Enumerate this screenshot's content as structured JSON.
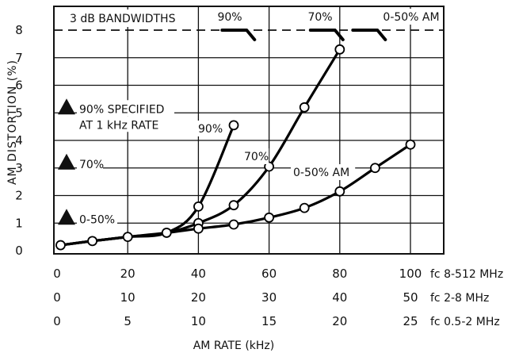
{
  "chart_data": {
    "type": "line",
    "xlabel": "AM RATE (kHz)",
    "ylabel": "AM DISTORTION (%)",
    "xlim": [
      0,
      100
    ],
    "ylim": [
      0,
      8
    ],
    "grid": true,
    "y_ticks": [
      "0",
      "1",
      "2",
      "3",
      "4",
      "5",
      "6",
      "7",
      "8"
    ],
    "x_scales": [
      {
        "ticks": [
          "0",
          "20",
          "40",
          "60",
          "80",
          "100"
        ],
        "label": "fc 8-512 MHz"
      },
      {
        "ticks": [
          "0",
          "10",
          "20",
          "30",
          "40",
          "50"
        ],
        "label": "fc 2-8 MHz"
      },
      {
        "ticks": [
          "0",
          "5",
          "10",
          "15",
          "20",
          "25"
        ],
        "label": "fc 0.5-2 MHz"
      }
    ],
    "bandwidth_line": {
      "y": 8,
      "label": "3 dB BANDWIDTHS",
      "markers": [
        {
          "label": "90%",
          "x": 55
        },
        {
          "label": "70%",
          "x": 80
        },
        {
          "label": "0-50% AM",
          "x": 92
        }
      ]
    },
    "series": [
      {
        "name": "90%",
        "x": [
          1,
          10,
          20,
          31,
          40,
          50
        ],
        "y": [
          0.2,
          0.35,
          0.5,
          0.65,
          1.6,
          4.55
        ]
      },
      {
        "name": "70%",
        "x": [
          1,
          10,
          20,
          31,
          40,
          50,
          60,
          70,
          80
        ],
        "y": [
          0.2,
          0.35,
          0.5,
          0.65,
          1.0,
          1.65,
          3.05,
          5.2,
          7.3
        ]
      },
      {
        "name": "0-50% AM",
        "x": [
          1,
          10,
          20,
          31,
          40,
          50,
          60,
          70,
          80,
          90,
          100
        ],
        "y": [
          0.2,
          0.35,
          0.5,
          0.65,
          0.8,
          0.95,
          1.2,
          1.55,
          2.15,
          3.0,
          3.85
        ]
      }
    ],
    "specified_markers": [
      {
        "label": "90% SPECIFIED",
        "label2": "AT 1 kHz RATE",
        "y": 5
      },
      {
        "label": "70%",
        "y": 3
      },
      {
        "label": "0-50%",
        "y": 1
      }
    ]
  }
}
